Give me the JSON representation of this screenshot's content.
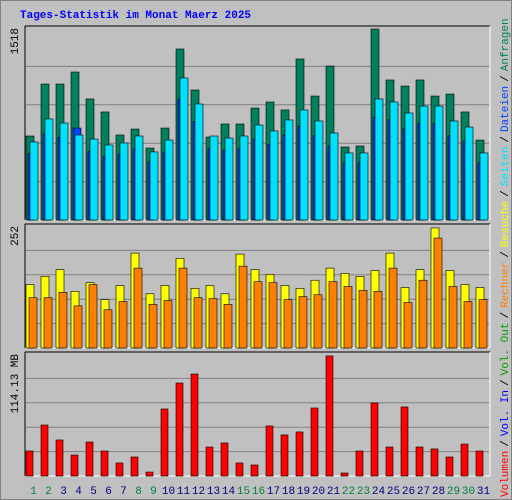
{
  "title": "Tages-Statistik im Monat Maerz 2025",
  "categories": [
    "1",
    "2",
    "3",
    "4",
    "5",
    "6",
    "7",
    "8",
    "9",
    "10",
    "11",
    "12",
    "13",
    "14",
    "15",
    "16",
    "17",
    "18",
    "19",
    "20",
    "21",
    "22",
    "23",
    "24",
    "25",
    "26",
    "27",
    "28",
    "29",
    "30",
    "31"
  ],
  "category_colors": [
    "#008040",
    "#008040",
    "#000080",
    "#000080",
    "#000080",
    "#000080",
    "#000080",
    "#008040",
    "#008040",
    "#000080",
    "#000080",
    "#000080",
    "#000080",
    "#000080",
    "#008040",
    "#008040",
    "#000080",
    "#000080",
    "#000080",
    "#000080",
    "#000080",
    "#008040",
    "#008040",
    "#000080",
    "#000080",
    "#000080",
    "#000080",
    "#000080",
    "#008040",
    "#008040",
    "#000080"
  ],
  "legend": [
    {
      "text": "Volumen",
      "color": "#ff0000"
    },
    {
      "text": "Vol. In",
      "color": "#0000ff"
    },
    {
      "text": "Vol. Out",
      "color": "#00a000"
    },
    {
      "text": "Rechner",
      "color": "#ff8000"
    },
    {
      "text": "Besuche",
      "color": "#ffff00"
    },
    {
      "text": "Seiten",
      "color": "#00e0ff"
    },
    {
      "text": "Dateien",
      "color": "#0040ff"
    },
    {
      "text": "Anfragen",
      "color": "#00805c"
    }
  ],
  "legend_separator": "/",
  "chart_data": [
    {
      "type": "bar",
      "ylim": [
        0,
        1518
      ],
      "yticks": [
        1518
      ],
      "series": [
        {
          "color": "#00805c",
          "values": [
            664,
            1075,
            1075,
            1170,
            957,
            854,
            672,
            719,
            569,
            727,
            1352,
            1028,
            656,
            759,
            759,
            885,
            933,
            870,
            1273,
            980,
            1217,
            577,
            585,
            1510,
            1107,
            1059,
            1107,
            980,
            996,
            854,
            632
          ]
        },
        {
          "color": "#0040ff",
          "values": [
            524,
            679,
            652,
            727,
            544,
            504,
            518,
            564,
            457,
            537,
            955,
            779,
            564,
            551,
            564,
            638,
            598,
            672,
            740,
            666,
            585,
            451,
            451,
            813,
            793,
            719,
            766,
            766,
            666,
            625,
            451
          ]
        },
        {
          "color": "#00e0ff",
          "values": [
            617,
            799,
            767,
            672,
            640,
            593,
            609,
            664,
            538,
            632,
            1123,
            917,
            664,
            648,
            664,
            751,
            704,
            791,
            870,
            783,
            688,
            530,
            530,
            957,
            933,
            846,
            901,
            901,
            783,
            735,
            530
          ]
        }
      ]
    },
    {
      "type": "bar",
      "ylim": [
        0,
        252
      ],
      "yticks": [
        252
      ],
      "series": [
        {
          "color": "#ffff00",
          "values": [
            131,
            148,
            162,
            117,
            135,
            100,
            129,
            196,
            112,
            129,
            185,
            123,
            129,
            112,
            194,
            162,
            152,
            129,
            123,
            140,
            165,
            154,
            148,
            160,
            196,
            125,
            162,
            248,
            160,
            131,
            125
          ]
        },
        {
          "color": "#ff8000",
          "values": [
            104,
            104,
            115,
            87,
            131,
            79,
            96,
            165,
            90,
            98,
            165,
            104,
            102,
            90,
            169,
            137,
            135,
            100,
            106,
            110,
            137,
            127,
            119,
            117,
            165,
            94,
            140,
            227,
            127,
            96,
            100
          ]
        }
      ]
    },
    {
      "type": "bar",
      "ylim": [
        0,
        114.13
      ],
      "yticks": [
        {
          "value": 114.13,
          "label": "114.13 MB"
        }
      ],
      "series": [
        {
          "color": "#ff0000",
          "values": [
            23.4,
            47.7,
            33.7,
            19.6,
            31.8,
            23.4,
            12.2,
            17.8,
            3.7,
            62.7,
            87.0,
            95.4,
            27.1,
            30.9,
            12.2,
            10.3,
            46.8,
            38.4,
            41.2,
            63.6,
            112.3,
            2.8,
            23.4,
            68.3,
            27.1,
            64.6,
            27.1,
            25.3,
            17.8,
            29.9,
            23.4
          ]
        }
      ]
    }
  ]
}
